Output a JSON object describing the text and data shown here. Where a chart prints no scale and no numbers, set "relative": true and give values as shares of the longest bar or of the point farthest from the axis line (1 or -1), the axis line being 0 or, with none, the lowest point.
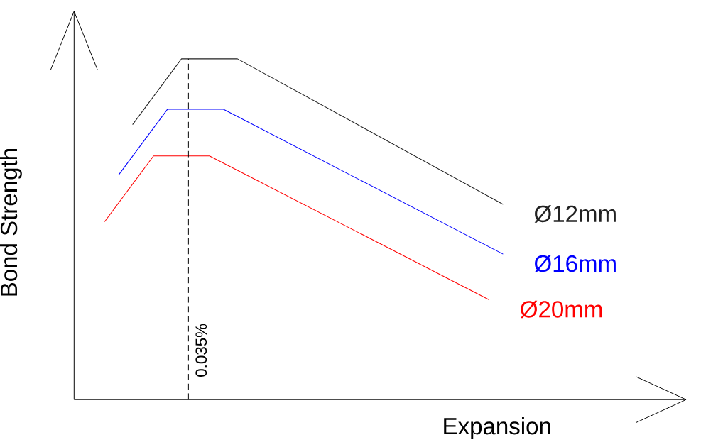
{
  "chart_data": {
    "type": "line",
    "relative": true,
    "xlabel": "Expansion",
    "ylabel": "Bond Strength",
    "categories": [
      null,
      null,
      null,
      null,
      null,
      null,
      null,
      null,
      null,
      null,
      null,
      null,
      null,
      null,
      null,
      null,
      null,
      null,
      null,
      null,
      null,
      null,
      null,
      null,
      null,
      null,
      null,
      null,
      null,
      null,
      null,
      null,
      null,
      null,
      null,
      null,
      null,
      null,
      null,
      null,
      null,
      null,
      null,
      null,
      null,
      null,
      null,
      null,
      null,
      null,
      null,
      null,
      null,
      null,
      null,
      null,
      null,
      null
    ],
    "series": [
      {
        "name": "Ø12mm",
        "color": "#222222",
        "values": [
          null,
          null,
          null,
          null,
          0.807,
          null,
          null,
          null,
          null,
          null,
          null,
          1,
          null,
          null,
          null,
          null,
          null,
          null,
          null,
          1,
          null,
          null,
          null,
          null,
          null,
          null,
          null,
          null,
          null,
          null,
          null,
          null,
          null,
          null,
          null,
          null,
          null,
          null,
          null,
          null,
          null,
          null,
          null,
          null,
          null,
          null,
          null,
          null,
          null,
          null,
          null,
          null,
          null,
          null,
          null,
          null,
          null,
          0.573
        ]
      },
      {
        "name": "Ø16mm",
        "color": "#0000ff",
        "values": [
          null,
          null,
          0.659,
          null,
          null,
          null,
          null,
          null,
          null,
          0.852,
          null,
          null,
          null,
          null,
          null,
          null,
          null,
          0.852,
          null,
          null,
          null,
          null,
          null,
          null,
          null,
          null,
          null,
          null,
          null,
          null,
          null,
          null,
          null,
          null,
          null,
          null,
          null,
          null,
          null,
          null,
          null,
          null,
          null,
          null,
          null,
          null,
          null,
          null,
          null,
          null,
          null,
          null,
          null,
          null,
          null,
          null,
          null,
          0.427
        ]
      },
      {
        "name": "Ø20mm",
        "color": "#ff0000",
        "values": [
          0.522,
          null,
          null,
          null,
          null,
          null,
          null,
          0.715,
          null,
          null,
          null,
          null,
          null,
          null,
          null,
          0.715,
          null,
          null,
          null,
          null,
          null,
          null,
          null,
          null,
          null,
          null,
          null,
          null,
          null,
          null,
          null,
          null,
          null,
          null,
          null,
          null,
          null,
          null,
          null,
          null,
          null,
          null,
          null,
          null,
          null,
          null,
          null,
          null,
          null,
          null,
          null,
          null,
          null,
          null,
          null,
          0.293,
          null,
          null
        ]
      }
    ],
    "annotations": [
      "0.035%"
    ]
  }
}
